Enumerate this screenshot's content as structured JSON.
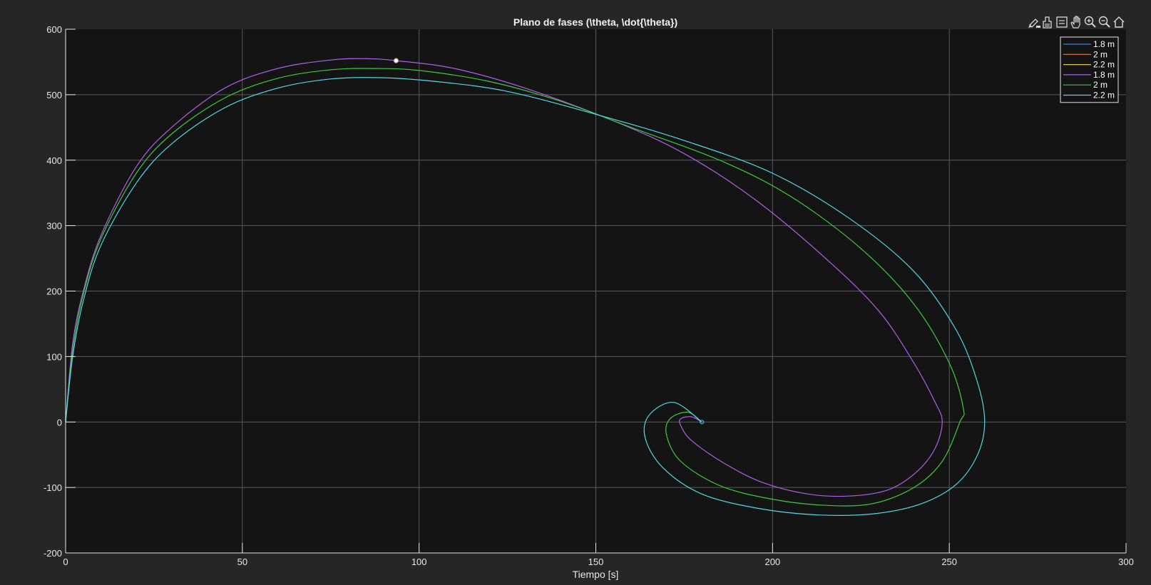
{
  "chart_data": {
    "type": "line",
    "title": "Plano de fases (\\theta, \\dot{\\theta})",
    "xlabel": "Tiempo [s]",
    "ylabel": "",
    "xlim": [
      0,
      300
    ],
    "ylim": [
      -200,
      600
    ],
    "xticks": [
      0,
      50,
      100,
      150,
      200,
      250,
      300
    ],
    "yticks": [
      -200,
      -100,
      0,
      100,
      200,
      300,
      400,
      500,
      600
    ],
    "xtick_labels": [
      "0",
      "50",
      "100",
      "150",
      "200",
      "250",
      "300"
    ],
    "ytick_labels": [
      "-200",
      "-100",
      "0",
      "100",
      "200",
      "300",
      "400",
      "500",
      "600"
    ],
    "grid": true,
    "legend_position": "top-right",
    "colors": {
      "figure_bg": "#262626",
      "axes_bg": "#141414",
      "grid": "#5a5a5a",
      "axis": "#e6e6e6"
    },
    "marker": {
      "x": 93.5,
      "y": 552,
      "color": "#ffffff"
    },
    "spiral_center": [
      180,
      0
    ],
    "series": [
      {
        "name": "1.8 m",
        "color": "#3a7fd0",
        "visible": false,
        "x": [
          0,
          2,
          5,
          10,
          20,
          30,
          45,
          60,
          75,
          85,
          93.5,
          110,
          130,
          155,
          175,
          195,
          215,
          230,
          240,
          246,
          248,
          246,
          241,
          233,
          222,
          210,
          197,
          186,
          177,
          174,
          174,
          177,
          180
        ],
        "y": [
          0,
          120,
          200,
          285,
          390,
          450,
          510,
          540,
          553,
          555,
          552,
          540,
          510,
          460,
          410,
          340,
          250,
          170,
          90,
          30,
          0,
          -40,
          -75,
          -103,
          -113,
          -110,
          -92,
          -62,
          -28,
          -5,
          5,
          8,
          0
        ]
      },
      {
        "name": "2 m",
        "color": "#e0803c",
        "visible": false,
        "x": [
          0,
          2,
          5,
          10,
          20,
          30,
          45,
          60,
          75,
          87,
          100,
          120,
          140,
          160,
          185,
          205,
          225,
          240,
          250,
          254,
          253,
          248,
          240,
          228,
          214,
          199,
          185,
          174,
          170,
          171,
          176,
          180
        ],
        "y": [
          0,
          110,
          195,
          280,
          380,
          440,
          495,
          525,
          538,
          540,
          537,
          520,
          490,
          450,
          400,
          345,
          265,
          180,
          90,
          20,
          0,
          -60,
          -100,
          -125,
          -127,
          -117,
          -97,
          -60,
          -20,
          5,
          15,
          0
        ]
      },
      {
        "name": "2.2 m",
        "color": "#e3c44a",
        "visible": false,
        "x": [
          0,
          2,
          5,
          10,
          20,
          30,
          45,
          60,
          75,
          89,
          105,
          125,
          150,
          175,
          200,
          222,
          240,
          252,
          258,
          260,
          258,
          252,
          242,
          229,
          213,
          196,
          180,
          169,
          164,
          165,
          172,
          180
        ],
        "y": [
          0,
          100,
          185,
          270,
          365,
          425,
          480,
          510,
          524,
          526,
          520,
          505,
          470,
          430,
          380,
          310,
          230,
          140,
          60,
          0,
          -50,
          -95,
          -125,
          -140,
          -142,
          -132,
          -110,
          -70,
          -25,
          10,
          30,
          0
        ]
      },
      {
        "name": "1.8 m",
        "color": "#b15de8",
        "visible": true,
        "x": [
          0,
          2,
          5,
          10,
          20,
          30,
          45,
          60,
          75,
          85,
          93.5,
          110,
          130,
          155,
          175,
          195,
          215,
          230,
          240,
          246,
          248,
          246,
          241,
          233,
          222,
          210,
          197,
          186,
          177,
          174,
          174,
          177,
          180
        ],
        "y": [
          0,
          120,
          200,
          285,
          390,
          450,
          510,
          540,
          553,
          555,
          552,
          540,
          510,
          460,
          410,
          340,
          250,
          170,
          90,
          30,
          0,
          -40,
          -75,
          -103,
          -113,
          -110,
          -92,
          -62,
          -28,
          -5,
          5,
          8,
          0
        ]
      },
      {
        "name": "2 m",
        "color": "#3dc93d",
        "visible": true,
        "x": [
          0,
          2,
          5,
          10,
          20,
          30,
          45,
          60,
          75,
          87,
          100,
          120,
          140,
          160,
          185,
          205,
          225,
          240,
          250,
          254,
          253,
          248,
          240,
          228,
          214,
          199,
          185,
          174,
          170,
          171,
          176,
          180
        ],
        "y": [
          0,
          110,
          195,
          280,
          380,
          440,
          495,
          525,
          538,
          540,
          537,
          520,
          490,
          450,
          400,
          345,
          265,
          180,
          90,
          20,
          0,
          -60,
          -100,
          -125,
          -127,
          -117,
          -97,
          -60,
          -20,
          5,
          15,
          0
        ]
      },
      {
        "name": "2.2 m",
        "color": "#4fd8e8",
        "visible": true,
        "x": [
          0,
          2,
          5,
          10,
          20,
          30,
          45,
          60,
          75,
          89,
          105,
          125,
          150,
          175,
          200,
          222,
          240,
          252,
          258,
          260,
          258,
          252,
          242,
          229,
          213,
          196,
          180,
          169,
          164,
          165,
          172,
          180
        ],
        "y": [
          0,
          100,
          185,
          270,
          365,
          425,
          480,
          510,
          524,
          526,
          520,
          505,
          470,
          430,
          380,
          310,
          230,
          140,
          60,
          0,
          -50,
          -95,
          -125,
          -140,
          -142,
          -132,
          -110,
          -70,
          -25,
          10,
          30,
          0
        ]
      }
    ]
  },
  "toolbar": {
    "icons": [
      "brush-icon",
      "data-tips-icon",
      "legend-icon",
      "pan-icon",
      "zoom-in-icon",
      "zoom-out-icon",
      "home-icon"
    ]
  }
}
